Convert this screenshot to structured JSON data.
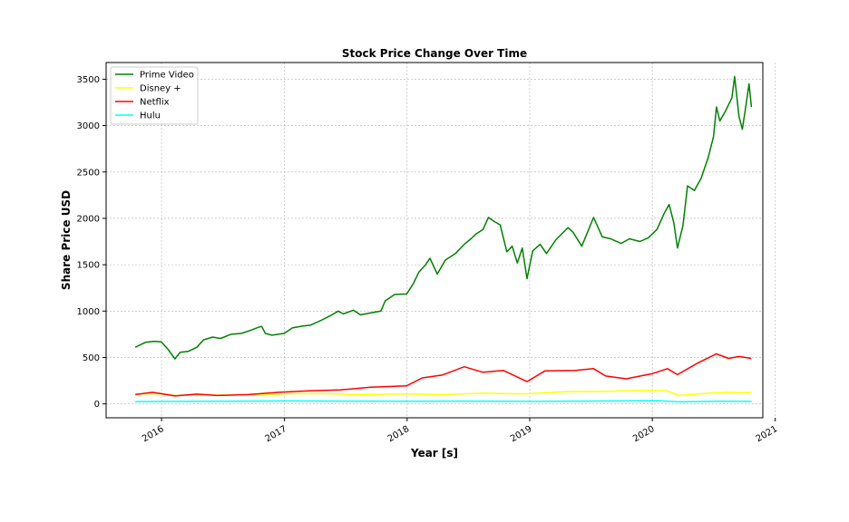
{
  "chart_data": {
    "type": "line",
    "title": "Stock Price Change Over Time",
    "xlabel": "Year [s]",
    "ylabel": "Share Price USD",
    "xlim": [
      "2015-07-20",
      "2020-11-25"
    ],
    "ylim": [
      -150,
      3680
    ],
    "x_ticks": [
      "2016",
      "2017",
      "2018",
      "2019",
      "2020",
      "2021"
    ],
    "y_ticks": [
      0,
      500,
      1000,
      1500,
      2000,
      2500,
      3000,
      3500
    ],
    "grid": true,
    "legend_position": "top-left",
    "series": [
      {
        "name": "Prime Video",
        "color": "#008000",
        "points": [
          [
            "2015-10-15",
            610
          ],
          [
            "2015-11-15",
            665
          ],
          [
            "2015-12-10",
            675
          ],
          [
            "2015-12-31",
            670
          ],
          [
            "2016-01-20",
            590
          ],
          [
            "2016-02-10",
            485
          ],
          [
            "2016-02-25",
            555
          ],
          [
            "2016-03-20",
            565
          ],
          [
            "2016-04-15",
            610
          ],
          [
            "2016-05-05",
            690
          ],
          [
            "2016-06-01",
            720
          ],
          [
            "2016-06-25",
            705
          ],
          [
            "2016-07-25",
            750
          ],
          [
            "2016-08-25",
            760
          ],
          [
            "2016-09-20",
            790
          ],
          [
            "2016-10-15",
            825
          ],
          [
            "2016-10-25",
            835
          ],
          [
            "2016-11-05",
            760
          ],
          [
            "2016-11-25",
            740
          ],
          [
            "2016-12-31",
            760
          ],
          [
            "2017-01-25",
            820
          ],
          [
            "2017-02-25",
            840
          ],
          [
            "2017-03-20",
            850
          ],
          [
            "2017-04-20",
            900
          ],
          [
            "2017-05-20",
            955
          ],
          [
            "2017-06-10",
            1000
          ],
          [
            "2017-06-25",
            970
          ],
          [
            "2017-07-25",
            1010
          ],
          [
            "2017-08-15",
            960
          ],
          [
            "2017-09-15",
            980
          ],
          [
            "2017-10-15",
            1000
          ],
          [
            "2017-10-28",
            1110
          ],
          [
            "2017-11-25",
            1180
          ],
          [
            "2017-12-31",
            1185
          ],
          [
            "2018-01-20",
            1300
          ],
          [
            "2018-02-05",
            1420
          ],
          [
            "2018-02-25",
            1500
          ],
          [
            "2018-03-10",
            1570
          ],
          [
            "2018-04-01",
            1400
          ],
          [
            "2018-04-25",
            1550
          ],
          [
            "2018-05-25",
            1620
          ],
          [
            "2018-06-20",
            1720
          ],
          [
            "2018-07-10",
            1780
          ],
          [
            "2018-07-25",
            1830
          ],
          [
            "2018-08-15",
            1880
          ],
          [
            "2018-08-31",
            2010
          ],
          [
            "2018-09-20",
            1960
          ],
          [
            "2018-10-05",
            1930
          ],
          [
            "2018-10-25",
            1640
          ],
          [
            "2018-11-10",
            1700
          ],
          [
            "2018-11-25",
            1520
          ],
          [
            "2018-12-10",
            1680
          ],
          [
            "2018-12-24",
            1350
          ],
          [
            "2019-01-10",
            1650
          ],
          [
            "2019-02-01",
            1720
          ],
          [
            "2019-02-20",
            1620
          ],
          [
            "2019-03-20",
            1770
          ],
          [
            "2019-04-25",
            1900
          ],
          [
            "2019-05-10",
            1850
          ],
          [
            "2019-06-05",
            1700
          ],
          [
            "2019-07-10",
            2010
          ],
          [
            "2019-08-05",
            1800
          ],
          [
            "2019-08-30",
            1780
          ],
          [
            "2019-09-30",
            1730
          ],
          [
            "2019-10-25",
            1780
          ],
          [
            "2019-11-25",
            1750
          ],
          [
            "2019-12-20",
            1790
          ],
          [
            "2020-01-15",
            1880
          ],
          [
            "2020-02-05",
            2050
          ],
          [
            "2020-02-20",
            2150
          ],
          [
            "2020-03-05",
            1950
          ],
          [
            "2020-03-16",
            1680
          ],
          [
            "2020-04-01",
            1920
          ],
          [
            "2020-04-15",
            2350
          ],
          [
            "2020-05-05",
            2300
          ],
          [
            "2020-05-25",
            2430
          ],
          [
            "2020-06-15",
            2650
          ],
          [
            "2020-07-01",
            2880
          ],
          [
            "2020-07-10",
            3200
          ],
          [
            "2020-07-20",
            3050
          ],
          [
            "2020-08-05",
            3150
          ],
          [
            "2020-08-25",
            3300
          ],
          [
            "2020-09-02",
            3530
          ],
          [
            "2020-09-15",
            3100
          ],
          [
            "2020-09-25",
            2960
          ],
          [
            "2020-10-05",
            3200
          ],
          [
            "2020-10-15",
            3450
          ],
          [
            "2020-10-22",
            3200
          ]
        ]
      },
      {
        "name": "Disney +",
        "color": "#ffff00",
        "points": [
          [
            "2015-10-15",
            105
          ],
          [
            "2015-12-15",
            110
          ],
          [
            "2016-02-15",
            90
          ],
          [
            "2016-06-15",
            95
          ],
          [
            "2016-10-15",
            95
          ],
          [
            "2017-01-15",
            110
          ],
          [
            "2017-04-15",
            112
          ],
          [
            "2017-08-15",
            100
          ],
          [
            "2017-12-15",
            108
          ],
          [
            "2018-04-15",
            100
          ],
          [
            "2018-08-15",
            115
          ],
          [
            "2018-12-15",
            108
          ],
          [
            "2019-04-15",
            130
          ],
          [
            "2019-08-15",
            135
          ],
          [
            "2019-12-15",
            145
          ],
          [
            "2020-02-15",
            140
          ],
          [
            "2020-03-20",
            90
          ],
          [
            "2020-06-15",
            115
          ],
          [
            "2020-08-15",
            125
          ],
          [
            "2020-10-22",
            120
          ]
        ]
      },
      {
        "name": "Netflix",
        "color": "#ff0000",
        "points": [
          [
            "2015-10-15",
            100
          ],
          [
            "2015-12-05",
            125
          ],
          [
            "2016-02-10",
            85
          ],
          [
            "2016-04-15",
            105
          ],
          [
            "2016-06-15",
            90
          ],
          [
            "2016-09-15",
            100
          ],
          [
            "2016-12-15",
            125
          ],
          [
            "2017-03-15",
            140
          ],
          [
            "2017-06-15",
            150
          ],
          [
            "2017-09-15",
            180
          ],
          [
            "2017-12-31",
            195
          ],
          [
            "2018-02-15",
            280
          ],
          [
            "2018-04-15",
            310
          ],
          [
            "2018-06-20",
            400
          ],
          [
            "2018-08-15",
            340
          ],
          [
            "2018-10-15",
            360
          ],
          [
            "2018-12-24",
            240
          ],
          [
            "2019-02-15",
            355
          ],
          [
            "2019-05-15",
            360
          ],
          [
            "2019-07-10",
            380
          ],
          [
            "2019-08-15",
            300
          ],
          [
            "2019-10-15",
            270
          ],
          [
            "2019-12-31",
            325
          ],
          [
            "2020-02-15",
            380
          ],
          [
            "2020-03-16",
            315
          ],
          [
            "2020-05-15",
            440
          ],
          [
            "2020-07-10",
            540
          ],
          [
            "2020-08-15",
            490
          ],
          [
            "2020-09-15",
            510
          ],
          [
            "2020-10-22",
            490
          ]
        ]
      },
      {
        "name": "Hulu",
        "color": "#00ffff",
        "points": [
          [
            "2015-10-15",
            25
          ],
          [
            "2016-06-15",
            28
          ],
          [
            "2017-01-15",
            32
          ],
          [
            "2017-06-15",
            30
          ],
          [
            "2018-01-15",
            28
          ],
          [
            "2018-06-15",
            30
          ],
          [
            "2019-01-15",
            27
          ],
          [
            "2019-06-15",
            30
          ],
          [
            "2020-01-15",
            35
          ],
          [
            "2020-03-20",
            22
          ],
          [
            "2020-07-15",
            28
          ],
          [
            "2020-10-22",
            27
          ]
        ]
      }
    ]
  }
}
